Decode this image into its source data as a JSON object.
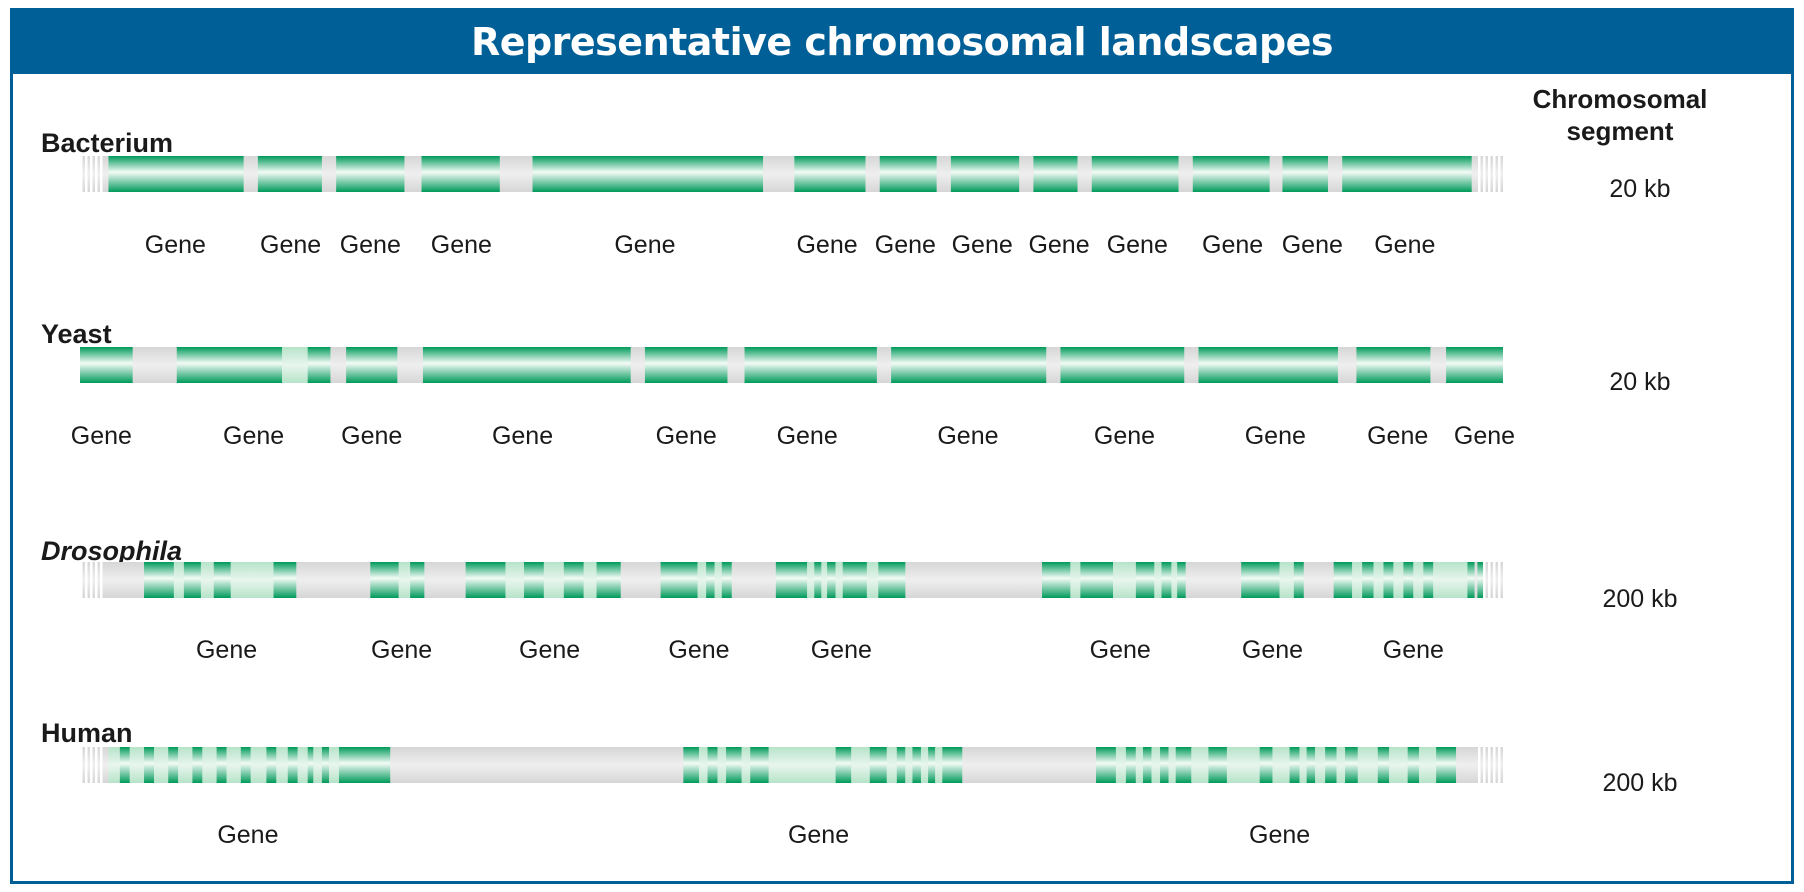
{
  "title": "Representative chromosomal landscapes",
  "segment_header": "Chromosomal segment",
  "colors": {
    "frame": "#005f96",
    "gene_dark": "#009a5a",
    "gene_light": "#e8f6ee",
    "intergenic": "#e2e2e2",
    "text": "#1a1a1a"
  },
  "rows": [
    {
      "organism": "Bacterium",
      "italic": false,
      "segment": "20 kb",
      "blocks": [
        {
          "s": 0.02,
          "e": 0.115,
          "t": "exon"
        },
        {
          "s": 0.125,
          "e": 0.17,
          "t": "exon"
        },
        {
          "s": 0.18,
          "e": 0.228,
          "t": "exon"
        },
        {
          "s": 0.24,
          "e": 0.295,
          "t": "exon"
        },
        {
          "s": 0.318,
          "e": 0.48,
          "t": "exon"
        },
        {
          "s": 0.502,
          "e": 0.552,
          "t": "exon"
        },
        {
          "s": 0.562,
          "e": 0.602,
          "t": "exon"
        },
        {
          "s": 0.612,
          "e": 0.66,
          "t": "exon"
        },
        {
          "s": 0.67,
          "e": 0.701,
          "t": "exon"
        },
        {
          "s": 0.711,
          "e": 0.772,
          "t": "exon"
        },
        {
          "s": 0.782,
          "e": 0.836,
          "t": "exon"
        },
        {
          "s": 0.845,
          "e": 0.877,
          "t": "exon"
        },
        {
          "s": 0.887,
          "e": 0.978,
          "t": "exon"
        }
      ],
      "labels": [
        {
          "text": "Gene",
          "pos": 0.067
        },
        {
          "text": "Gene",
          "pos": 0.148
        },
        {
          "text": "Gene",
          "pos": 0.204
        },
        {
          "text": "Gene",
          "pos": 0.268
        },
        {
          "text": "Gene",
          "pos": 0.397
        },
        {
          "text": "Gene",
          "pos": 0.525
        },
        {
          "text": "Gene",
          "pos": 0.58
        },
        {
          "text": "Gene",
          "pos": 0.634
        },
        {
          "text": "Gene",
          "pos": 0.688
        },
        {
          "text": "Gene",
          "pos": 0.743
        },
        {
          "text": "Gene",
          "pos": 0.81
        },
        {
          "text": "Gene",
          "pos": 0.866
        },
        {
          "text": "Gene",
          "pos": 0.931
        }
      ]
    },
    {
      "organism": "Yeast",
      "italic": false,
      "segment": "20 kb",
      "blocks": [
        {
          "s": 0.0,
          "e": 0.037,
          "t": "exon"
        },
        {
          "s": 0.068,
          "e": 0.142,
          "t": "exon"
        },
        {
          "s": 0.142,
          "e": 0.16,
          "t": "intron"
        },
        {
          "s": 0.16,
          "e": 0.176,
          "t": "exon"
        },
        {
          "s": 0.187,
          "e": 0.223,
          "t": "exon"
        },
        {
          "s": 0.241,
          "e": 0.387,
          "t": "exon"
        },
        {
          "s": 0.397,
          "e": 0.455,
          "t": "exon"
        },
        {
          "s": 0.467,
          "e": 0.56,
          "t": "exon"
        },
        {
          "s": 0.57,
          "e": 0.679,
          "t": "exon"
        },
        {
          "s": 0.689,
          "e": 0.776,
          "t": "exon"
        },
        {
          "s": 0.786,
          "e": 0.884,
          "t": "exon"
        },
        {
          "s": 0.897,
          "e": 0.949,
          "t": "exon"
        },
        {
          "s": 0.96,
          "e": 1.0,
          "t": "exon"
        }
      ],
      "labels": [
        {
          "text": "Gene",
          "pos": 0.015
        },
        {
          "text": "Gene",
          "pos": 0.122
        },
        {
          "text": "Gene",
          "pos": 0.205
        },
        {
          "text": "Gene",
          "pos": 0.311
        },
        {
          "text": "Gene",
          "pos": 0.426
        },
        {
          "text": "Gene",
          "pos": 0.511
        },
        {
          "text": "Gene",
          "pos": 0.624
        },
        {
          "text": "Gene",
          "pos": 0.734
        },
        {
          "text": "Gene",
          "pos": 0.84
        },
        {
          "text": "Gene",
          "pos": 0.926
        },
        {
          "text": "Gene",
          "pos": 0.987
        }
      ]
    },
    {
      "organism": "Drosophila",
      "italic": true,
      "segment": "200 kb",
      "blocks": [
        {
          "s": 0.045,
          "e": 0.066,
          "t": "exon"
        },
        {
          "s": 0.066,
          "e": 0.073,
          "t": "intron"
        },
        {
          "s": 0.073,
          "e": 0.085,
          "t": "exon"
        },
        {
          "s": 0.085,
          "e": 0.094,
          "t": "intron"
        },
        {
          "s": 0.094,
          "e": 0.106,
          "t": "exon"
        },
        {
          "s": 0.106,
          "e": 0.136,
          "t": "intron"
        },
        {
          "s": 0.136,
          "e": 0.152,
          "t": "exon"
        },
        {
          "s": 0.204,
          "e": 0.224,
          "t": "exon"
        },
        {
          "s": 0.224,
          "e": 0.232,
          "t": "intron"
        },
        {
          "s": 0.232,
          "e": 0.242,
          "t": "exon"
        },
        {
          "s": 0.271,
          "e": 0.299,
          "t": "exon"
        },
        {
          "s": 0.299,
          "e": 0.312,
          "t": "intron"
        },
        {
          "s": 0.312,
          "e": 0.326,
          "t": "exon"
        },
        {
          "s": 0.326,
          "e": 0.34,
          "t": "intron"
        },
        {
          "s": 0.34,
          "e": 0.354,
          "t": "exon"
        },
        {
          "s": 0.354,
          "e": 0.363,
          "t": "intron"
        },
        {
          "s": 0.363,
          "e": 0.38,
          "t": "exon"
        },
        {
          "s": 0.408,
          "e": 0.434,
          "t": "exon"
        },
        {
          "s": 0.434,
          "e": 0.44,
          "t": "intron"
        },
        {
          "s": 0.44,
          "e": 0.446,
          "t": "exon"
        },
        {
          "s": 0.446,
          "e": 0.451,
          "t": "intron"
        },
        {
          "s": 0.451,
          "e": 0.458,
          "t": "exon"
        },
        {
          "s": 0.489,
          "e": 0.511,
          "t": "exon"
        },
        {
          "s": 0.511,
          "e": 0.516,
          "t": "intron"
        },
        {
          "s": 0.516,
          "e": 0.521,
          "t": "exon"
        },
        {
          "s": 0.521,
          "e": 0.525,
          "t": "intron"
        },
        {
          "s": 0.525,
          "e": 0.531,
          "t": "exon"
        },
        {
          "s": 0.531,
          "e": 0.536,
          "t": "intron"
        },
        {
          "s": 0.536,
          "e": 0.553,
          "t": "exon"
        },
        {
          "s": 0.553,
          "e": 0.561,
          "t": "intron"
        },
        {
          "s": 0.561,
          "e": 0.58,
          "t": "exon"
        },
        {
          "s": 0.676,
          "e": 0.696,
          "t": "exon"
        },
        {
          "s": 0.696,
          "e": 0.703,
          "t": "intron"
        },
        {
          "s": 0.703,
          "e": 0.726,
          "t": "exon"
        },
        {
          "s": 0.726,
          "e": 0.742,
          "t": "intron"
        },
        {
          "s": 0.742,
          "e": 0.755,
          "t": "exon"
        },
        {
          "s": 0.755,
          "e": 0.76,
          "t": "intron"
        },
        {
          "s": 0.76,
          "e": 0.767,
          "t": "exon"
        },
        {
          "s": 0.767,
          "e": 0.771,
          "t": "intron"
        },
        {
          "s": 0.771,
          "e": 0.777,
          "t": "exon"
        },
        {
          "s": 0.816,
          "e": 0.843,
          "t": "exon"
        },
        {
          "s": 0.843,
          "e": 0.853,
          "t": "intron"
        },
        {
          "s": 0.853,
          "e": 0.86,
          "t": "exon"
        },
        {
          "s": 0.881,
          "e": 0.894,
          "t": "exon"
        },
        {
          "s": 0.894,
          "e": 0.901,
          "t": "intron"
        },
        {
          "s": 0.901,
          "e": 0.909,
          "t": "exon"
        },
        {
          "s": 0.909,
          "e": 0.916,
          "t": "intron"
        },
        {
          "s": 0.916,
          "e": 0.923,
          "t": "exon"
        },
        {
          "s": 0.923,
          "e": 0.93,
          "t": "intron"
        },
        {
          "s": 0.93,
          "e": 0.937,
          "t": "exon"
        },
        {
          "s": 0.937,
          "e": 0.944,
          "t": "intron"
        },
        {
          "s": 0.944,
          "e": 0.951,
          "t": "exon"
        },
        {
          "s": 0.951,
          "e": 0.975,
          "t": "intron"
        },
        {
          "s": 0.975,
          "e": 0.98,
          "t": "exon"
        },
        {
          "s": 0.982,
          "e": 0.986,
          "t": "exon"
        }
      ],
      "labels": [
        {
          "text": "Gene",
          "pos": 0.103
        },
        {
          "text": "Gene",
          "pos": 0.226
        },
        {
          "text": "Gene",
          "pos": 0.33
        },
        {
          "text": "Gene",
          "pos": 0.435
        },
        {
          "text": "Gene",
          "pos": 0.535
        },
        {
          "text": "Gene",
          "pos": 0.731
        },
        {
          "text": "Gene",
          "pos": 0.838
        },
        {
          "text": "Gene",
          "pos": 0.937
        }
      ]
    },
    {
      "organism": "Human",
      "italic": false,
      "segment": "200 kb",
      "blocks": [
        {
          "s": 0.02,
          "e": 0.028,
          "t": "intron"
        },
        {
          "s": 0.028,
          "e": 0.035,
          "t": "exon"
        },
        {
          "s": 0.035,
          "e": 0.045,
          "t": "intron"
        },
        {
          "s": 0.045,
          "e": 0.052,
          "t": "exon"
        },
        {
          "s": 0.052,
          "e": 0.062,
          "t": "intron"
        },
        {
          "s": 0.062,
          "e": 0.069,
          "t": "exon"
        },
        {
          "s": 0.069,
          "e": 0.079,
          "t": "intron"
        },
        {
          "s": 0.079,
          "e": 0.086,
          "t": "exon"
        },
        {
          "s": 0.086,
          "e": 0.096,
          "t": "intron"
        },
        {
          "s": 0.096,
          "e": 0.103,
          "t": "exon"
        },
        {
          "s": 0.103,
          "e": 0.113,
          "t": "intron"
        },
        {
          "s": 0.113,
          "e": 0.12,
          "t": "exon"
        },
        {
          "s": 0.12,
          "e": 0.131,
          "t": "intron"
        },
        {
          "s": 0.131,
          "e": 0.138,
          "t": "exon"
        },
        {
          "s": 0.138,
          "e": 0.146,
          "t": "intron"
        },
        {
          "s": 0.146,
          "e": 0.153,
          "t": "exon"
        },
        {
          "s": 0.153,
          "e": 0.16,
          "t": "intron"
        },
        {
          "s": 0.16,
          "e": 0.164,
          "t": "exon"
        },
        {
          "s": 0.164,
          "e": 0.17,
          "t": "intron"
        },
        {
          "s": 0.17,
          "e": 0.175,
          "t": "exon"
        },
        {
          "s": 0.175,
          "e": 0.182,
          "t": "intron"
        },
        {
          "s": 0.182,
          "e": 0.218,
          "t": "exon"
        },
        {
          "s": 0.424,
          "e": 0.435,
          "t": "exon"
        },
        {
          "s": 0.435,
          "e": 0.441,
          "t": "intron"
        },
        {
          "s": 0.441,
          "e": 0.448,
          "t": "exon"
        },
        {
          "s": 0.448,
          "e": 0.454,
          "t": "intron"
        },
        {
          "s": 0.454,
          "e": 0.465,
          "t": "exon"
        },
        {
          "s": 0.465,
          "e": 0.471,
          "t": "intron"
        },
        {
          "s": 0.471,
          "e": 0.484,
          "t": "exon"
        },
        {
          "s": 0.484,
          "e": 0.531,
          "t": "intron"
        },
        {
          "s": 0.531,
          "e": 0.542,
          "t": "exon"
        },
        {
          "s": 0.542,
          "e": 0.555,
          "t": "intron"
        },
        {
          "s": 0.555,
          "e": 0.567,
          "t": "exon"
        },
        {
          "s": 0.567,
          "e": 0.574,
          "t": "intron"
        },
        {
          "s": 0.574,
          "e": 0.58,
          "t": "exon"
        },
        {
          "s": 0.58,
          "e": 0.585,
          "t": "intron"
        },
        {
          "s": 0.585,
          "e": 0.591,
          "t": "exon"
        },
        {
          "s": 0.591,
          "e": 0.596,
          "t": "intron"
        },
        {
          "s": 0.596,
          "e": 0.601,
          "t": "exon"
        },
        {
          "s": 0.601,
          "e": 0.606,
          "t": "intron"
        },
        {
          "s": 0.606,
          "e": 0.62,
          "t": "exon"
        },
        {
          "s": 0.714,
          "e": 0.728,
          "t": "exon"
        },
        {
          "s": 0.728,
          "e": 0.735,
          "t": "intron"
        },
        {
          "s": 0.735,
          "e": 0.742,
          "t": "exon"
        },
        {
          "s": 0.742,
          "e": 0.747,
          "t": "intron"
        },
        {
          "s": 0.747,
          "e": 0.753,
          "t": "exon"
        },
        {
          "s": 0.753,
          "e": 0.759,
          "t": "intron"
        },
        {
          "s": 0.759,
          "e": 0.765,
          "t": "exon"
        },
        {
          "s": 0.765,
          "e": 0.77,
          "t": "intron"
        },
        {
          "s": 0.77,
          "e": 0.781,
          "t": "exon"
        },
        {
          "s": 0.781,
          "e": 0.793,
          "t": "intron"
        },
        {
          "s": 0.793,
          "e": 0.806,
          "t": "exon"
        },
        {
          "s": 0.806,
          "e": 0.829,
          "t": "intron"
        },
        {
          "s": 0.829,
          "e": 0.838,
          "t": "exon"
        },
        {
          "s": 0.838,
          "e": 0.85,
          "t": "intron"
        },
        {
          "s": 0.85,
          "e": 0.857,
          "t": "exon"
        },
        {
          "s": 0.857,
          "e": 0.862,
          "t": "intron"
        },
        {
          "s": 0.862,
          "e": 0.868,
          "t": "exon"
        },
        {
          "s": 0.868,
          "e": 0.875,
          "t": "intron"
        },
        {
          "s": 0.875,
          "e": 0.883,
          "t": "exon"
        },
        {
          "s": 0.883,
          "e": 0.889,
          "t": "intron"
        },
        {
          "s": 0.889,
          "e": 0.898,
          "t": "exon"
        },
        {
          "s": 0.898,
          "e": 0.912,
          "t": "intron"
        },
        {
          "s": 0.912,
          "e": 0.92,
          "t": "exon"
        },
        {
          "s": 0.92,
          "e": 0.933,
          "t": "intron"
        },
        {
          "s": 0.933,
          "e": 0.941,
          "t": "exon"
        },
        {
          "s": 0.941,
          "e": 0.953,
          "t": "intron"
        },
        {
          "s": 0.953,
          "e": 0.967,
          "t": "exon"
        }
      ],
      "labels": [
        {
          "text": "Gene",
          "pos": 0.118
        },
        {
          "text": "Gene",
          "pos": 0.519
        },
        {
          "text": "Gene",
          "pos": 0.843
        }
      ]
    }
  ]
}
